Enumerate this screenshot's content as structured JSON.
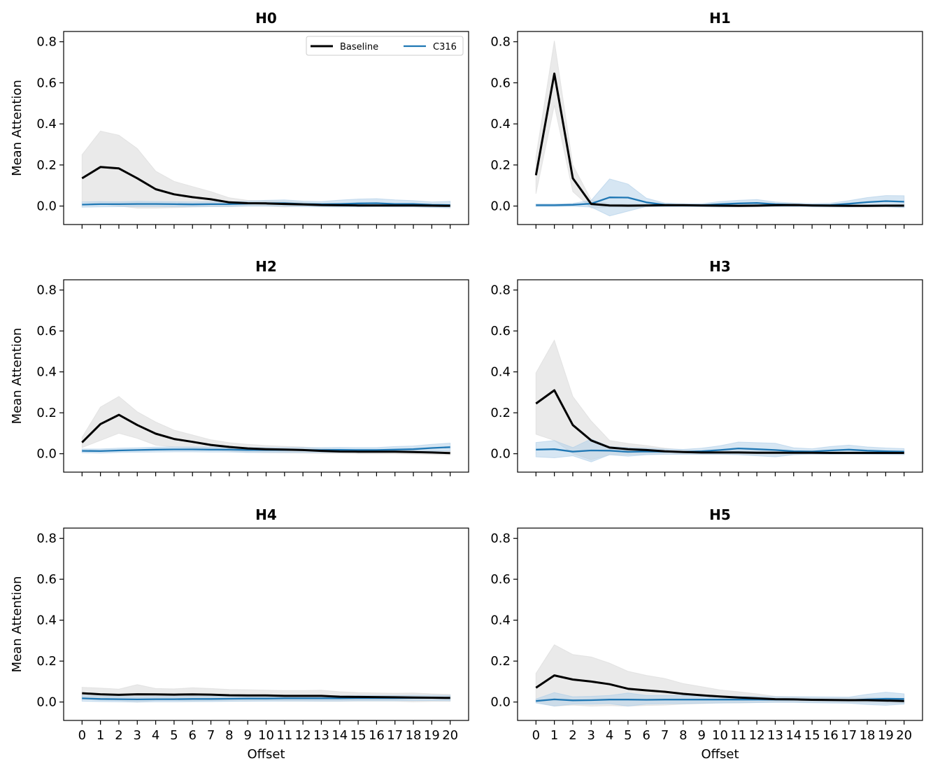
{
  "chart_data": [
    {
      "type": "line",
      "title": "H0",
      "xlabel": "",
      "ylabel": "Mean Attention",
      "ylim": [
        -0.09,
        0.85
      ],
      "x": [
        0,
        1,
        2,
        3,
        4,
        5,
        6,
        7,
        8,
        9,
        10,
        11,
        12,
        13,
        14,
        15,
        16,
        17,
        18,
        19,
        20
      ],
      "series": [
        {
          "name": "Baseline",
          "values": [
            0.135,
            0.19,
            0.183,
            0.135,
            0.082,
            0.057,
            0.043,
            0.033,
            0.018,
            0.014,
            0.013,
            0.01,
            0.008,
            0.005,
            0.004,
            0.003,
            0.003,
            0.003,
            0.003,
            0.002,
            0.001
          ],
          "band_low": [
            0.02,
            0.01,
            0.0,
            -0.01,
            -0.01,
            -0.008,
            -0.005,
            -0.003,
            -0.003,
            0.0,
            0.0,
            -0.005,
            0.0,
            0.0,
            -0.003,
            -0.003,
            -0.003,
            -0.002,
            -0.003,
            -0.003,
            -0.003
          ],
          "band_high": [
            0.25,
            0.365,
            0.345,
            0.28,
            0.17,
            0.12,
            0.095,
            0.07,
            0.04,
            0.028,
            0.025,
            0.022,
            0.018,
            0.012,
            0.01,
            0.009,
            0.009,
            0.008,
            0.008,
            0.007,
            0.006
          ]
        },
        {
          "name": "C316",
          "values": [
            0.007,
            0.009,
            0.009,
            0.01,
            0.01,
            0.009,
            0.008,
            0.009,
            0.009,
            0.012,
            0.014,
            0.014,
            0.01,
            0.009,
            0.01,
            0.013,
            0.014,
            0.01,
            0.01,
            0.006,
            0.005
          ],
          "band_low": [
            -0.006,
            -0.004,
            -0.003,
            -0.002,
            -0.002,
            -0.003,
            -0.003,
            -0.002,
            -0.002,
            0.0,
            0.0,
            0.0,
            -0.003,
            -0.004,
            -0.005,
            -0.004,
            -0.003,
            -0.004,
            -0.004,
            -0.007,
            -0.009
          ],
          "band_high": [
            0.02,
            0.022,
            0.021,
            0.023,
            0.022,
            0.021,
            0.02,
            0.021,
            0.021,
            0.024,
            0.028,
            0.03,
            0.024,
            0.022,
            0.029,
            0.034,
            0.036,
            0.03,
            0.026,
            0.02,
            0.023
          ]
        }
      ],
      "legend": {
        "show": true,
        "entries": [
          "Baseline",
          "C316"
        ]
      }
    },
    {
      "type": "line",
      "title": "H1",
      "xlabel": "",
      "ylabel": "",
      "ylim": [
        -0.09,
        0.85
      ],
      "x": [
        0,
        1,
        2,
        3,
        4,
        5,
        6,
        7,
        8,
        9,
        10,
        11,
        12,
        13,
        14,
        15,
        16,
        17,
        18,
        19,
        20
      ],
      "series": [
        {
          "name": "Baseline",
          "values": [
            0.15,
            0.645,
            0.135,
            0.01,
            0.003,
            0.002,
            0.003,
            0.004,
            0.004,
            0.003,
            0.002,
            0.001,
            0.002,
            0.004,
            0.005,
            0.003,
            0.002,
            0.001,
            0.001,
            0.002,
            0.002
          ],
          "band_low": [
            0.06,
            0.49,
            0.07,
            -0.01,
            -0.005,
            -0.005,
            -0.004,
            -0.003,
            -0.003,
            -0.003,
            -0.004,
            -0.005,
            -0.004,
            -0.002,
            -0.002,
            -0.003,
            -0.004,
            -0.005,
            -0.005,
            -0.004,
            -0.004
          ],
          "band_high": [
            0.24,
            0.805,
            0.2,
            0.03,
            0.011,
            0.009,
            0.01,
            0.011,
            0.011,
            0.009,
            0.008,
            0.007,
            0.008,
            0.01,
            0.012,
            0.009,
            0.008,
            0.007,
            0.007,
            0.008,
            0.008
          ]
        },
        {
          "name": "C316",
          "values": [
            0.004,
            0.004,
            0.006,
            0.012,
            0.042,
            0.041,
            0.018,
            0.006,
            0.004,
            0.004,
            0.009,
            0.013,
            0.015,
            0.009,
            0.006,
            0.004,
            0.005,
            0.011,
            0.019,
            0.024,
            0.021
          ],
          "band_low": [
            -0.002,
            -0.002,
            -0.001,
            -0.005,
            -0.048,
            -0.025,
            -0.002,
            -0.003,
            -0.003,
            -0.003,
            -0.004,
            -0.002,
            -0.002,
            -0.002,
            -0.003,
            -0.004,
            -0.004,
            -0.004,
            -0.003,
            -0.003,
            -0.008
          ],
          "band_high": [
            0.01,
            0.01,
            0.013,
            0.028,
            0.132,
            0.107,
            0.038,
            0.015,
            0.011,
            0.011,
            0.022,
            0.028,
            0.032,
            0.02,
            0.015,
            0.012,
            0.014,
            0.026,
            0.041,
            0.051,
            0.05
          ]
        }
      ],
      "legend": {
        "show": false
      }
    },
    {
      "type": "line",
      "title": "H2",
      "xlabel": "",
      "ylabel": "Mean Attention",
      "ylim": [
        -0.09,
        0.85
      ],
      "x": [
        0,
        1,
        2,
        3,
        4,
        5,
        6,
        7,
        8,
        9,
        10,
        11,
        12,
        13,
        14,
        15,
        16,
        17,
        18,
        19,
        20
      ],
      "series": [
        {
          "name": "Baseline",
          "values": [
            0.055,
            0.145,
            0.19,
            0.14,
            0.098,
            0.072,
            0.058,
            0.043,
            0.033,
            0.026,
            0.022,
            0.02,
            0.018,
            0.014,
            0.011,
            0.01,
            0.01,
            0.01,
            0.008,
            0.006,
            0.003
          ],
          "band_low": [
            0.03,
            0.065,
            0.1,
            0.075,
            0.042,
            0.033,
            0.027,
            0.02,
            0.012,
            0.006,
            0.005,
            0.004,
            0.003,
            0.002,
            0.001,
            0.0,
            0.0,
            0.0,
            -0.002,
            -0.004,
            -0.006
          ],
          "band_high": [
            0.08,
            0.228,
            0.28,
            0.205,
            0.155,
            0.115,
            0.092,
            0.068,
            0.054,
            0.046,
            0.04,
            0.036,
            0.033,
            0.026,
            0.022,
            0.02,
            0.02,
            0.02,
            0.017,
            0.016,
            0.013
          ]
        },
        {
          "name": "C316",
          "values": [
            0.014,
            0.013,
            0.016,
            0.018,
            0.02,
            0.021,
            0.021,
            0.02,
            0.02,
            0.018,
            0.018,
            0.018,
            0.018,
            0.018,
            0.019,
            0.018,
            0.018,
            0.02,
            0.022,
            0.028,
            0.032
          ],
          "band_low": [
            0.005,
            0.003,
            0.006,
            0.007,
            0.008,
            0.009,
            0.009,
            0.008,
            0.008,
            0.006,
            0.006,
            0.006,
            0.006,
            0.006,
            0.007,
            0.006,
            0.006,
            0.007,
            0.009,
            0.012,
            0.014
          ],
          "band_high": [
            0.023,
            0.023,
            0.027,
            0.029,
            0.032,
            0.033,
            0.033,
            0.032,
            0.032,
            0.03,
            0.03,
            0.03,
            0.03,
            0.03,
            0.031,
            0.03,
            0.03,
            0.035,
            0.038,
            0.046,
            0.052
          ]
        }
      ],
      "legend": {
        "show": false
      }
    },
    {
      "type": "line",
      "title": "H3",
      "xlabel": "",
      "ylabel": "",
      "ylim": [
        -0.09,
        0.85
      ],
      "x": [
        0,
        1,
        2,
        3,
        4,
        5,
        6,
        7,
        8,
        9,
        10,
        11,
        12,
        13,
        14,
        15,
        16,
        17,
        18,
        19,
        20
      ],
      "series": [
        {
          "name": "Baseline",
          "values": [
            0.245,
            0.31,
            0.14,
            0.065,
            0.03,
            0.022,
            0.018,
            0.012,
            0.008,
            0.006,
            0.006,
            0.006,
            0.005,
            0.005,
            0.005,
            0.005,
            0.004,
            0.004,
            0.004,
            0.004,
            0.004
          ],
          "band_low": [
            0.095,
            0.065,
            0.0,
            -0.03,
            -0.005,
            -0.005,
            -0.004,
            -0.003,
            -0.003,
            -0.003,
            -0.003,
            -0.003,
            -0.003,
            -0.003,
            -0.003,
            -0.003,
            -0.003,
            -0.003,
            -0.003,
            -0.003,
            -0.003
          ],
          "band_high": [
            0.395,
            0.555,
            0.28,
            0.16,
            0.065,
            0.05,
            0.04,
            0.027,
            0.019,
            0.015,
            0.015,
            0.015,
            0.013,
            0.013,
            0.013,
            0.013,
            0.011,
            0.011,
            0.011,
            0.011,
            0.011
          ]
        },
        {
          "name": "C316",
          "values": [
            0.02,
            0.022,
            0.01,
            0.016,
            0.015,
            0.009,
            0.011,
            0.01,
            0.009,
            0.012,
            0.018,
            0.026,
            0.022,
            0.018,
            0.012,
            0.011,
            0.016,
            0.02,
            0.015,
            0.012,
            0.01
          ],
          "band_low": [
            -0.015,
            -0.02,
            -0.01,
            -0.04,
            -0.005,
            -0.012,
            -0.005,
            -0.003,
            -0.003,
            -0.003,
            -0.003,
            -0.005,
            -0.01,
            -0.015,
            -0.005,
            -0.002,
            -0.003,
            -0.002,
            -0.003,
            -0.004,
            -0.005
          ],
          "band_high": [
            0.055,
            0.064,
            0.03,
            0.072,
            0.035,
            0.03,
            0.027,
            0.023,
            0.021,
            0.027,
            0.039,
            0.057,
            0.054,
            0.051,
            0.029,
            0.024,
            0.035,
            0.042,
            0.033,
            0.028,
            0.025
          ]
        }
      ],
      "legend": {
        "show": false
      }
    },
    {
      "type": "line",
      "title": "H4",
      "xlabel": "Offset",
      "ylabel": "Mean Attention",
      "ylim": [
        -0.09,
        0.85
      ],
      "x": [
        0,
        1,
        2,
        3,
        4,
        5,
        6,
        7,
        8,
        9,
        10,
        11,
        12,
        13,
        14,
        15,
        16,
        17,
        18,
        19,
        20
      ],
      "series": [
        {
          "name": "Baseline",
          "values": [
            0.043,
            0.038,
            0.035,
            0.038,
            0.037,
            0.036,
            0.037,
            0.036,
            0.033,
            0.032,
            0.032,
            0.03,
            0.03,
            0.03,
            0.026,
            0.025,
            0.024,
            0.023,
            0.022,
            0.021,
            0.02
          ],
          "band_low": [
            0.015,
            0.01,
            0.008,
            0.0,
            0.008,
            0.008,
            0.004,
            0.007,
            0.005,
            0.004,
            0.006,
            0.004,
            0.004,
            0.003,
            0.003,
            0.004,
            0.004,
            0.004,
            0.001,
            0.003,
            0.003
          ],
          "band_high": [
            0.072,
            0.068,
            0.063,
            0.085,
            0.066,
            0.064,
            0.07,
            0.066,
            0.061,
            0.06,
            0.058,
            0.056,
            0.056,
            0.058,
            0.05,
            0.046,
            0.044,
            0.043,
            0.044,
            0.04,
            0.037
          ]
        },
        {
          "name": "C316",
          "values": [
            0.018,
            0.015,
            0.014,
            0.013,
            0.014,
            0.014,
            0.015,
            0.015,
            0.016,
            0.017,
            0.017,
            0.018,
            0.018,
            0.018,
            0.018,
            0.019,
            0.019,
            0.019,
            0.02,
            0.02,
            0.019
          ],
          "band_low": [
            0.004,
            0.002,
            0.001,
            0.0,
            0.001,
            0.001,
            0.002,
            0.002,
            0.003,
            0.004,
            0.004,
            0.005,
            0.005,
            0.005,
            0.005,
            0.006,
            0.006,
            0.006,
            0.007,
            0.007,
            0.006
          ],
          "band_high": [
            0.032,
            0.028,
            0.027,
            0.026,
            0.027,
            0.027,
            0.028,
            0.028,
            0.029,
            0.03,
            0.03,
            0.031,
            0.031,
            0.031,
            0.031,
            0.032,
            0.032,
            0.032,
            0.033,
            0.033,
            0.032
          ]
        }
      ],
      "legend": {
        "show": false
      }
    },
    {
      "type": "line",
      "title": "H5",
      "xlabel": "Offset",
      "ylabel": "",
      "ylim": [
        -0.09,
        0.85
      ],
      "x": [
        0,
        1,
        2,
        3,
        4,
        5,
        6,
        7,
        8,
        9,
        10,
        11,
        12,
        13,
        14,
        15,
        16,
        17,
        18,
        19,
        20
      ],
      "series": [
        {
          "name": "Baseline",
          "values": [
            0.07,
            0.13,
            0.11,
            0.1,
            0.087,
            0.065,
            0.057,
            0.05,
            0.04,
            0.033,
            0.027,
            0.022,
            0.018,
            0.014,
            0.013,
            0.011,
            0.01,
            0.009,
            0.009,
            0.007,
            0.005
          ],
          "band_low": [
            0.0,
            -0.02,
            -0.015,
            -0.02,
            -0.018,
            -0.02,
            -0.017,
            -0.015,
            -0.01,
            -0.008,
            -0.005,
            -0.005,
            -0.003,
            0.0,
            0.0,
            0.0,
            0.0,
            -0.003,
            -0.004,
            -0.006,
            -0.008
          ],
          "band_high": [
            0.14,
            0.28,
            0.232,
            0.22,
            0.19,
            0.15,
            0.13,
            0.115,
            0.09,
            0.075,
            0.059,
            0.05,
            0.04,
            0.028,
            0.026,
            0.022,
            0.02,
            0.021,
            0.022,
            0.02,
            0.018
          ]
        },
        {
          "name": "C316",
          "values": [
            0.005,
            0.013,
            0.008,
            0.009,
            0.012,
            0.012,
            0.011,
            0.012,
            0.012,
            0.012,
            0.012,
            0.012,
            0.012,
            0.012,
            0.012,
            0.011,
            0.01,
            0.009,
            0.013,
            0.016,
            0.015
          ],
          "band_low": [
            -0.005,
            -0.02,
            -0.01,
            -0.01,
            -0.008,
            -0.02,
            -0.01,
            -0.008,
            -0.008,
            -0.006,
            -0.005,
            -0.004,
            -0.003,
            -0.002,
            -0.002,
            -0.004,
            -0.005,
            -0.006,
            -0.012,
            -0.016,
            -0.01
          ],
          "band_high": [
            0.015,
            0.046,
            0.026,
            0.028,
            0.032,
            0.044,
            0.032,
            0.032,
            0.032,
            0.03,
            0.029,
            0.028,
            0.027,
            0.026,
            0.026,
            0.026,
            0.025,
            0.024,
            0.038,
            0.048,
            0.04
          ]
        }
      ],
      "legend": {
        "show": false
      }
    }
  ],
  "style": {
    "baseline_color": "#000000",
    "c316_color": "#1f77b4",
    "baseline_band": "#d9d9d9",
    "c316_band": "#aecde8"
  }
}
